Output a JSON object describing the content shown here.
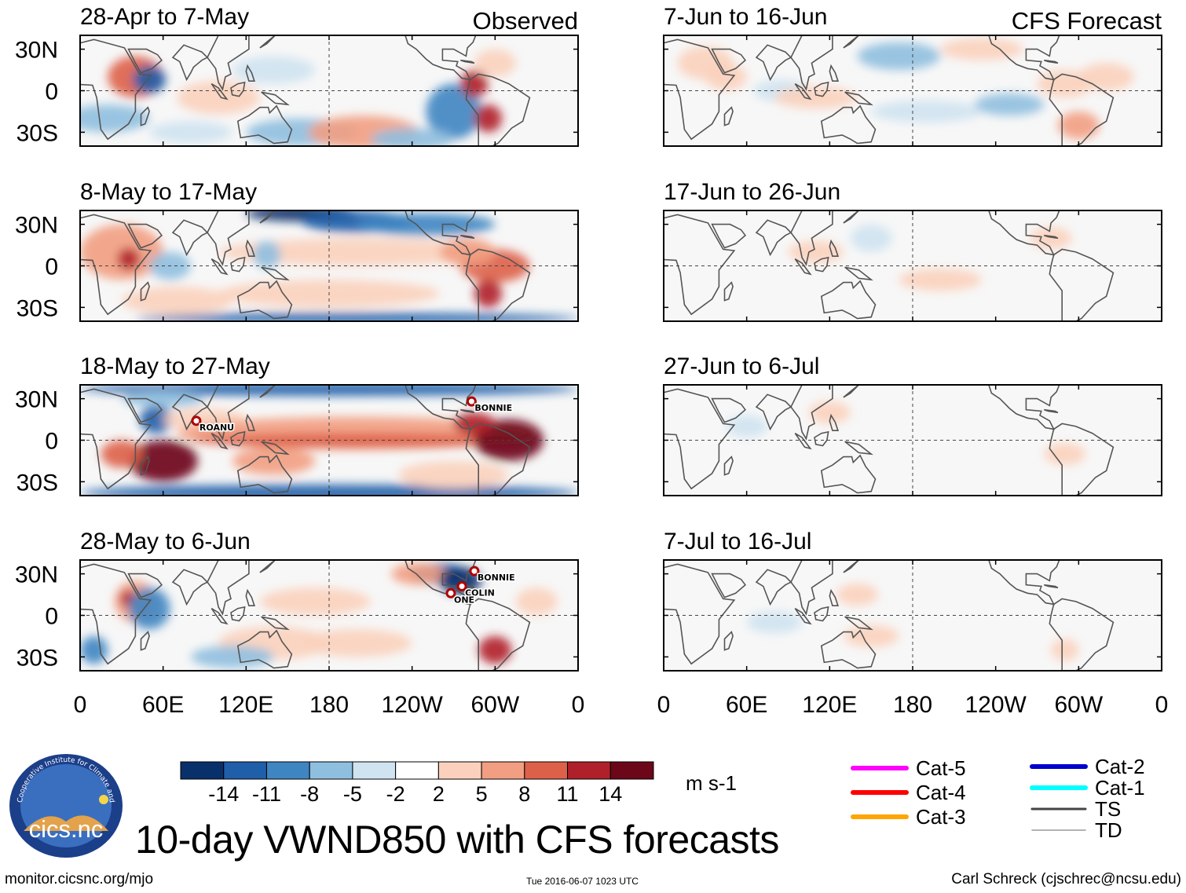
{
  "chart_data": {
    "type": "heatmap",
    "title": "10-day VWND850 with CFS forecasts",
    "variable": "VWND850",
    "units": "m s-1",
    "column_headers": {
      "observed": "Observed",
      "forecast": "CFS Forecast"
    },
    "x_ticks": [
      "0",
      "60E",
      "120E",
      "180",
      "120W",
      "60W",
      "0"
    ],
    "y_ticks": [
      "30N",
      "0",
      "30S"
    ],
    "xlim": [
      0,
      360
    ],
    "ylim": [
      -40,
      40
    ],
    "colorbar": {
      "levels": [
        "-14",
        "-11",
        "-8",
        "-5",
        "-2",
        "2",
        "5",
        "8",
        "11",
        "14"
      ],
      "colors": [
        "#08306b",
        "#1f5ea8",
        "#3f85c2",
        "#8fbfdf",
        "#cfe3f1",
        "#ffffff",
        "#fbd1bd",
        "#f29e82",
        "#dd6049",
        "#b0202a",
        "#6b0718"
      ]
    },
    "observed_panels": [
      {
        "label": "28-Apr to 7-May",
        "storms": []
      },
      {
        "label": "8-May to 17-May",
        "storms": []
      },
      {
        "label": "18-May to 27-May",
        "storms": [
          {
            "name": "ROANU",
            "lon": 84,
            "lat": 14
          },
          {
            "name": "BONNIE",
            "lon": 283,
            "lat": 28
          }
        ]
      },
      {
        "label": "28-May to 6-Jun",
        "storms": [
          {
            "name": "BONNIE",
            "lon": 285,
            "lat": 32
          },
          {
            "name": "COLIN",
            "lon": 276,
            "lat": 21
          },
          {
            "name": "ONE",
            "lon": 268,
            "lat": 16
          }
        ]
      }
    ],
    "forecast_panels": [
      {
        "label": "7-Jun to 16-Jun"
      },
      {
        "label": "17-Jun to 26-Jun"
      },
      {
        "label": "27-Jun to 6-Jul"
      },
      {
        "label": "7-Jul to 16-Jul"
      }
    ],
    "storm_legend": [
      {
        "label": "Cat-5",
        "color": "#ff00ff"
      },
      {
        "label": "Cat-4",
        "color": "#ff0000"
      },
      {
        "label": "Cat-3",
        "color": "#ffa500"
      },
      {
        "label": "Cat-2",
        "color": "#0000cd"
      },
      {
        "label": "Cat-1",
        "color": "#00ffff"
      },
      {
        "label": "TS",
        "color": "#444444"
      },
      {
        "label": "TD",
        "color": "#999999"
      }
    ]
  },
  "footer": {
    "url": "monitor.cicsnc.org/mjo",
    "timestamp": "Tue 2016-06-07 1023 UTC",
    "author": "Carl Schreck (cjschrec@ncsu.edu)"
  },
  "logo": {
    "text": "cics.nc",
    "ring_text": "Cooperative Institute for Climate and Satellites"
  }
}
